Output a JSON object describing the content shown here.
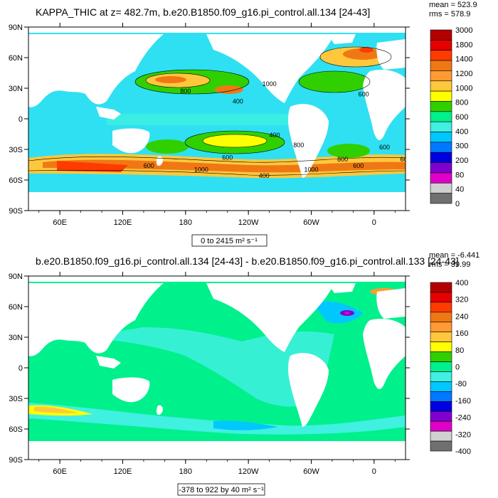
{
  "chart_data": [
    {
      "type": "heatmap",
      "title": "KAPPA_THIC at z= 482.7m, b.e20.B1850.f09_g16.pi_control.all.134 [24-43]",
      "stats": {
        "mean": "mean = 523.9",
        "rms": "rms = 578.9"
      },
      "subtitle": "0 to 2415 m² s⁻¹",
      "y_ticks": [
        "90N",
        "60N",
        "30N",
        "0",
        "30S",
        "60S",
        "90S"
      ],
      "x_ticks": [
        "60E",
        "120E",
        "180",
        "120W",
        "60W",
        "0"
      ],
      "colorbar_labels": [
        "3000",
        "1800",
        "1400",
        "1200",
        "1000",
        "800",
        "600",
        "400",
        "300",
        "200",
        "80",
        "40",
        "0"
      ],
      "colorbar_colors": [
        "#b40000",
        "#e60000",
        "#ff3c00",
        "#f07814",
        "#ff9b32",
        "#ffc83c",
        "#ffff00",
        "#30d000",
        "#00f08c",
        "#40f0e0",
        "#00c8ff",
        "#0078ff",
        "#0000e0",
        "#8000d0",
        "#e000c8",
        "#d0d0d0",
        "#707070"
      ],
      "contour_labels": [
        "600",
        "800",
        "400",
        "1000",
        "400",
        "800",
        "600",
        "1000",
        "600",
        "600",
        "800",
        "600",
        "400",
        "1000",
        "600"
      ],
      "ylim": [
        -90,
        90
      ],
      "xlim": [
        30,
        390
      ]
    },
    {
      "type": "heatmap",
      "title": "b.e20.B1850.f09_g16.pi_control.all.134 [24-43] - b.e20.B1850.f09_g16.pi_control.all.133 [24-43]",
      "stats": {
        "mean": "mean = -6.441",
        "rms": "rms = 39.99"
      },
      "subtitle": "-378 to 922 by 40 m² s⁻¹",
      "y_ticks": [
        "90N",
        "60N",
        "30N",
        "0",
        "30S",
        "60S",
        "90S"
      ],
      "x_ticks": [
        "60E",
        "120E",
        "180",
        "120W",
        "60W",
        "0"
      ],
      "colorbar_labels": [
        "400",
        "320",
        "240",
        "160",
        "80",
        "0",
        "-80",
        "-160",
        "-240",
        "-320",
        "-400"
      ],
      "colorbar_colors": [
        "#b40000",
        "#e60000",
        "#ff3c00",
        "#f07814",
        "#ff9b32",
        "#ffc83c",
        "#ffff00",
        "#30d000",
        "#00f08c",
        "#40f0e0",
        "#00c8ff",
        "#0078ff",
        "#0000e0",
        "#8000d0",
        "#e000c8",
        "#d0d0d0",
        "#707070"
      ],
      "ylim": [
        -90,
        90
      ],
      "xlim": [
        30,
        390
      ]
    }
  ]
}
